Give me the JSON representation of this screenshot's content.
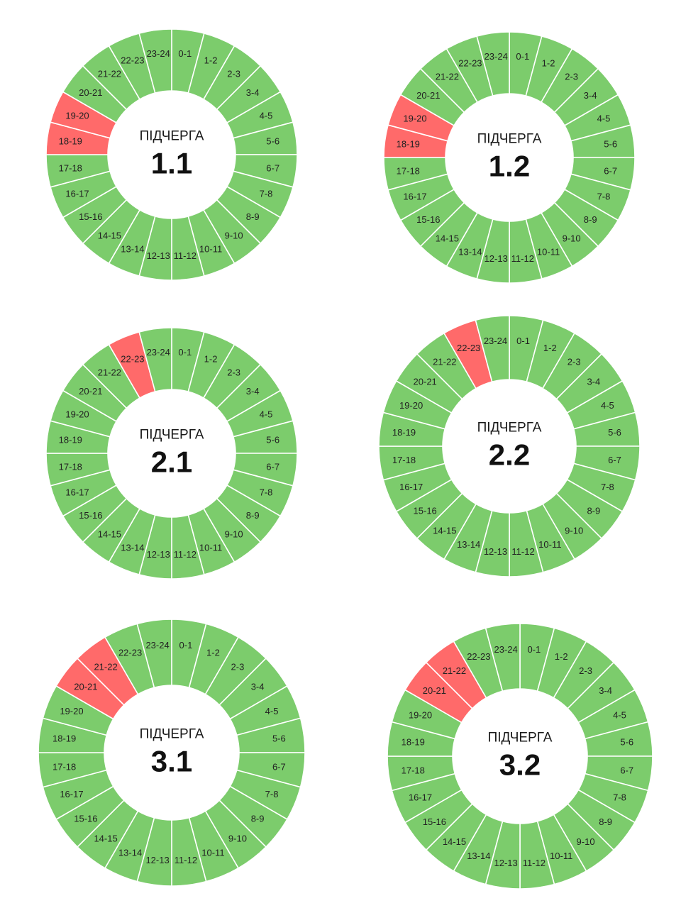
{
  "colors": {
    "on": "#7ccc6c",
    "off": "#ff6a6a",
    "divider": "#ffffff",
    "center": "#ffffff"
  },
  "chart_data": [
    {
      "type": "pie",
      "title": "ПІДЧЕРГА",
      "subtitle": "1.1",
      "categories": [
        "0-1",
        "1-2",
        "2-3",
        "3-4",
        "4-5",
        "5-6",
        "6-7",
        "7-8",
        "8-9",
        "9-10",
        "10-11",
        "11-12",
        "12-13",
        "13-14",
        "14-15",
        "15-16",
        "16-17",
        "17-18",
        "18-19",
        "19-20",
        "20-21",
        "21-22",
        "22-23",
        "23-24"
      ],
      "values": [
        1,
        1,
        1,
        1,
        1,
        1,
        1,
        1,
        1,
        1,
        1,
        1,
        1,
        1,
        1,
        1,
        1,
        1,
        1,
        1,
        1,
        1,
        1,
        1
      ],
      "outage_hours": [
        "18-19",
        "19-20"
      ]
    },
    {
      "type": "pie",
      "title": "ПІДЧЕРГА",
      "subtitle": "1.2",
      "categories": [
        "0-1",
        "1-2",
        "2-3",
        "3-4",
        "4-5",
        "5-6",
        "6-7",
        "7-8",
        "8-9",
        "9-10",
        "10-11",
        "11-12",
        "12-13",
        "13-14",
        "14-15",
        "15-16",
        "16-17",
        "17-18",
        "18-19",
        "19-20",
        "20-21",
        "21-22",
        "22-23",
        "23-24"
      ],
      "values": [
        1,
        1,
        1,
        1,
        1,
        1,
        1,
        1,
        1,
        1,
        1,
        1,
        1,
        1,
        1,
        1,
        1,
        1,
        1,
        1,
        1,
        1,
        1,
        1
      ],
      "outage_hours": [
        "18-19",
        "19-20"
      ]
    },
    {
      "type": "pie",
      "title": "ПІДЧЕРГА",
      "subtitle": "2.1",
      "categories": [
        "0-1",
        "1-2",
        "2-3",
        "3-4",
        "4-5",
        "5-6",
        "6-7",
        "7-8",
        "8-9",
        "9-10",
        "10-11",
        "11-12",
        "12-13",
        "13-14",
        "14-15",
        "15-16",
        "16-17",
        "17-18",
        "18-19",
        "19-20",
        "20-21",
        "21-22",
        "22-23",
        "23-24"
      ],
      "values": [
        1,
        1,
        1,
        1,
        1,
        1,
        1,
        1,
        1,
        1,
        1,
        1,
        1,
        1,
        1,
        1,
        1,
        1,
        1,
        1,
        1,
        1,
        1,
        1
      ],
      "outage_hours": [
        "22-23"
      ]
    },
    {
      "type": "pie",
      "title": "ПІДЧЕРГА",
      "subtitle": "2.2",
      "categories": [
        "0-1",
        "1-2",
        "2-3",
        "3-4",
        "4-5",
        "5-6",
        "6-7",
        "7-8",
        "8-9",
        "9-10",
        "10-11",
        "11-12",
        "12-13",
        "13-14",
        "14-15",
        "15-16",
        "16-17",
        "17-18",
        "18-19",
        "19-20",
        "20-21",
        "21-22",
        "22-23",
        "23-24"
      ],
      "values": [
        1,
        1,
        1,
        1,
        1,
        1,
        1,
        1,
        1,
        1,
        1,
        1,
        1,
        1,
        1,
        1,
        1,
        1,
        1,
        1,
        1,
        1,
        1,
        1
      ],
      "outage_hours": [
        "22-23"
      ]
    },
    {
      "type": "pie",
      "title": "ПІДЧЕРГА",
      "subtitle": "3.1",
      "categories": [
        "0-1",
        "1-2",
        "2-3",
        "3-4",
        "4-5",
        "5-6",
        "6-7",
        "7-8",
        "8-9",
        "9-10",
        "10-11",
        "11-12",
        "12-13",
        "13-14",
        "14-15",
        "15-16",
        "16-17",
        "17-18",
        "18-19",
        "19-20",
        "20-21",
        "21-22",
        "22-23",
        "23-24"
      ],
      "values": [
        1,
        1,
        1,
        1,
        1,
        1,
        1,
        1,
        1,
        1,
        1,
        1,
        1,
        1,
        1,
        1,
        1,
        1,
        1,
        1,
        1,
        1,
        1,
        1
      ],
      "outage_hours": [
        "20-21",
        "21-22"
      ]
    },
    {
      "type": "pie",
      "title": "ПІДЧЕРГА",
      "subtitle": "3.2",
      "categories": [
        "0-1",
        "1-2",
        "2-3",
        "3-4",
        "4-5",
        "5-6",
        "6-7",
        "7-8",
        "8-9",
        "9-10",
        "10-11",
        "11-12",
        "12-13",
        "13-14",
        "14-15",
        "15-16",
        "16-17",
        "17-18",
        "18-19",
        "19-20",
        "20-21",
        "21-22",
        "22-23",
        "23-24"
      ],
      "values": [
        1,
        1,
        1,
        1,
        1,
        1,
        1,
        1,
        1,
        1,
        1,
        1,
        1,
        1,
        1,
        1,
        1,
        1,
        1,
        1,
        1,
        1,
        1,
        1
      ],
      "outage_hours": [
        "20-21",
        "21-22"
      ]
    }
  ]
}
